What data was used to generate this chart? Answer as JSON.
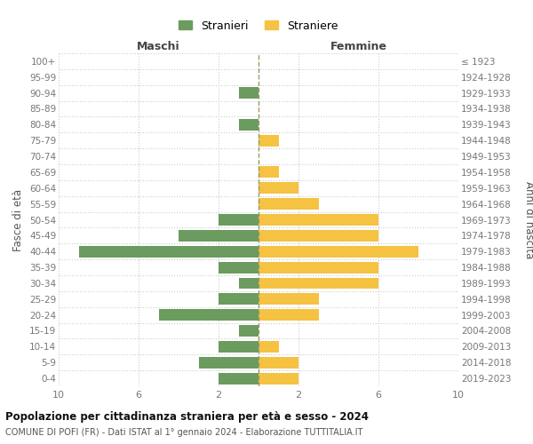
{
  "age_groups": [
    "0-4",
    "5-9",
    "10-14",
    "15-19",
    "20-24",
    "25-29",
    "30-34",
    "35-39",
    "40-44",
    "45-49",
    "50-54",
    "55-59",
    "60-64",
    "65-69",
    "70-74",
    "75-79",
    "80-84",
    "85-89",
    "90-94",
    "95-99",
    "100+"
  ],
  "birth_years": [
    "2019-2023",
    "2014-2018",
    "2009-2013",
    "2004-2008",
    "1999-2003",
    "1994-1998",
    "1989-1993",
    "1984-1988",
    "1979-1983",
    "1974-1978",
    "1969-1973",
    "1964-1968",
    "1959-1963",
    "1954-1958",
    "1949-1953",
    "1944-1948",
    "1939-1943",
    "1934-1938",
    "1929-1933",
    "1924-1928",
    "≤ 1923"
  ],
  "males": [
    2,
    3,
    2,
    1,
    5,
    2,
    1,
    2,
    9,
    4,
    2,
    0,
    0,
    0,
    0,
    0,
    1,
    0,
    1,
    0,
    0
  ],
  "females": [
    2,
    2,
    1,
    0,
    3,
    3,
    6,
    6,
    8,
    6,
    6,
    3,
    2,
    1,
    0,
    1,
    0,
    0,
    0,
    0,
    0
  ],
  "male_color": "#6b9b5e",
  "female_color": "#f5c242",
  "grid_color": "#cccccc",
  "center_line_color": "#999966",
  "title": "Popolazione per cittadinanza straniera per età e sesso - 2024",
  "subtitle": "COMUNE DI POFI (FR) - Dati ISTAT al 1° gennaio 2024 - Elaborazione TUTTITALIA.IT",
  "xlabel_left": "Maschi",
  "xlabel_right": "Femmine",
  "ylabel_left": "Fasce di età",
  "ylabel_right": "Anni di nascita",
  "legend_male": "Stranieri",
  "legend_female": "Straniere",
  "xlim": 10,
  "xtick_positions": [
    -10,
    -6,
    -2,
    2,
    6,
    10
  ],
  "xtick_labels": [
    "10",
    "6",
    "2",
    "2",
    "6",
    "10"
  ]
}
